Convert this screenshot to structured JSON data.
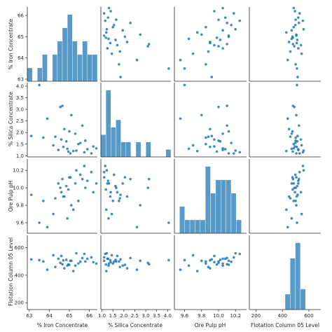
{
  "chart_data": {
    "type": "scatter",
    "kind": "pairplot",
    "variables": [
      "% Iron Concentrate",
      "% Silica Concentrate",
      "Ore Pulp pH",
      "Flotation Column 05 Level"
    ],
    "color": "#1f77b4",
    "ranges": [
      [
        62.9,
        66.4
      ],
      [
        0.95,
        4.15
      ],
      [
        9.48,
        10.33
      ],
      [
        150,
        690
      ]
    ],
    "ticks": [
      [
        63,
        64,
        65,
        66
      ],
      [
        1.0,
        1.5,
        2.0,
        2.5,
        3.0,
        3.5,
        4.0
      ],
      [
        9.6,
        9.8,
        10.0,
        10.2
      ],
      [
        200,
        400,
        600
      ]
    ],
    "tick_labels": [
      [
        "63",
        "64",
        "65",
        "66"
      ],
      [
        "1.0",
        "1.5",
        "2.0",
        "2.5",
        "3.0",
        "3.5",
        "4.0"
      ],
      [
        "9.6",
        "9.8",
        "10.0",
        "10.2"
      ],
      [
        "200",
        "400",
        "600"
      ]
    ],
    "samples": [
      {
        "iron": 66.35,
        "silica": 1.32,
        "ph": 10.05,
        "level": 485
      },
      {
        "iron": 65.05,
        "silica": 1.1,
        "ph": 10.12,
        "level": 505
      },
      {
        "iron": 64.95,
        "silica": 1.18,
        "ph": 9.98,
        "level": 478
      },
      {
        "iron": 64.85,
        "silica": 1.62,
        "ph": 10.02,
        "level": 512
      },
      {
        "iron": 65.55,
        "silica": 1.55,
        "ph": 10.15,
        "level": 498
      },
      {
        "iron": 65.9,
        "silica": 1.28,
        "ph": 10.08,
        "level": 520
      },
      {
        "iron": 65.3,
        "silica": 1.95,
        "ph": 10.05,
        "level": 470
      },
      {
        "iron": 64.6,
        "silica": 1.7,
        "ph": 9.95,
        "level": 540
      },
      {
        "iron": 64.75,
        "silica": 2.15,
        "ph": 9.9,
        "level": 450
      },
      {
        "iron": 65.65,
        "silica": 2.3,
        "ph": 10.1,
        "level": 525
      },
      {
        "iron": 64.3,
        "silica": 1.82,
        "ph": 9.88,
        "level": 460
      },
      {
        "iron": 63.7,
        "silica": 1.78,
        "ph": 9.85,
        "level": 500
      },
      {
        "iron": 63.1,
        "silica": 1.85,
        "ph": 9.92,
        "level": 515
      },
      {
        "iron": 65.2,
        "silica": 1.2,
        "ph": 9.75,
        "level": 430
      },
      {
        "iron": 65.35,
        "silica": 1.22,
        "ph": 10.2,
        "level": 560
      },
      {
        "iron": 64.2,
        "silica": 1.45,
        "ph": 9.7,
        "level": 545
      },
      {
        "iron": 64.55,
        "silica": 3.1,
        "ph": 10.0,
        "level": 490
      },
      {
        "iron": 64.65,
        "silica": 3.15,
        "ph": 10.1,
        "level": 480
      },
      {
        "iron": 65.1,
        "silica": 2.75,
        "ph": 9.8,
        "level": 505
      },
      {
        "iron": 66.2,
        "silica": 1.4,
        "ph": 9.95,
        "level": 495
      },
      {
        "iron": 66.1,
        "silica": 1.1,
        "ph": 10.18,
        "level": 530
      },
      {
        "iron": 63.5,
        "silica": 4.05,
        "ph": 9.6,
        "level": 510
      },
      {
        "iron": 64.9,
        "silica": 1.3,
        "ph": 9.65,
        "level": 470
      },
      {
        "iron": 65.8,
        "silica": 1.65,
        "ph": 10.0,
        "level": 500
      },
      {
        "iron": 65.45,
        "silica": 1.5,
        "ph": 9.85,
        "level": 485
      },
      {
        "iron": 64.45,
        "silica": 1.25,
        "ph": 10.05,
        "level": 520
      },
      {
        "iron": 63.9,
        "silica": 2.6,
        "ph": 9.55,
        "level": 440
      },
      {
        "iron": 65.75,
        "silica": 1.15,
        "ph": 10.25,
        "level": 555
      },
      {
        "iron": 64.7,
        "silica": 1.38,
        "ph": 9.9,
        "level": 508
      },
      {
        "iron": 65.0,
        "silica": 2.05,
        "ph": 10.12,
        "level": 476
      }
    ]
  }
}
